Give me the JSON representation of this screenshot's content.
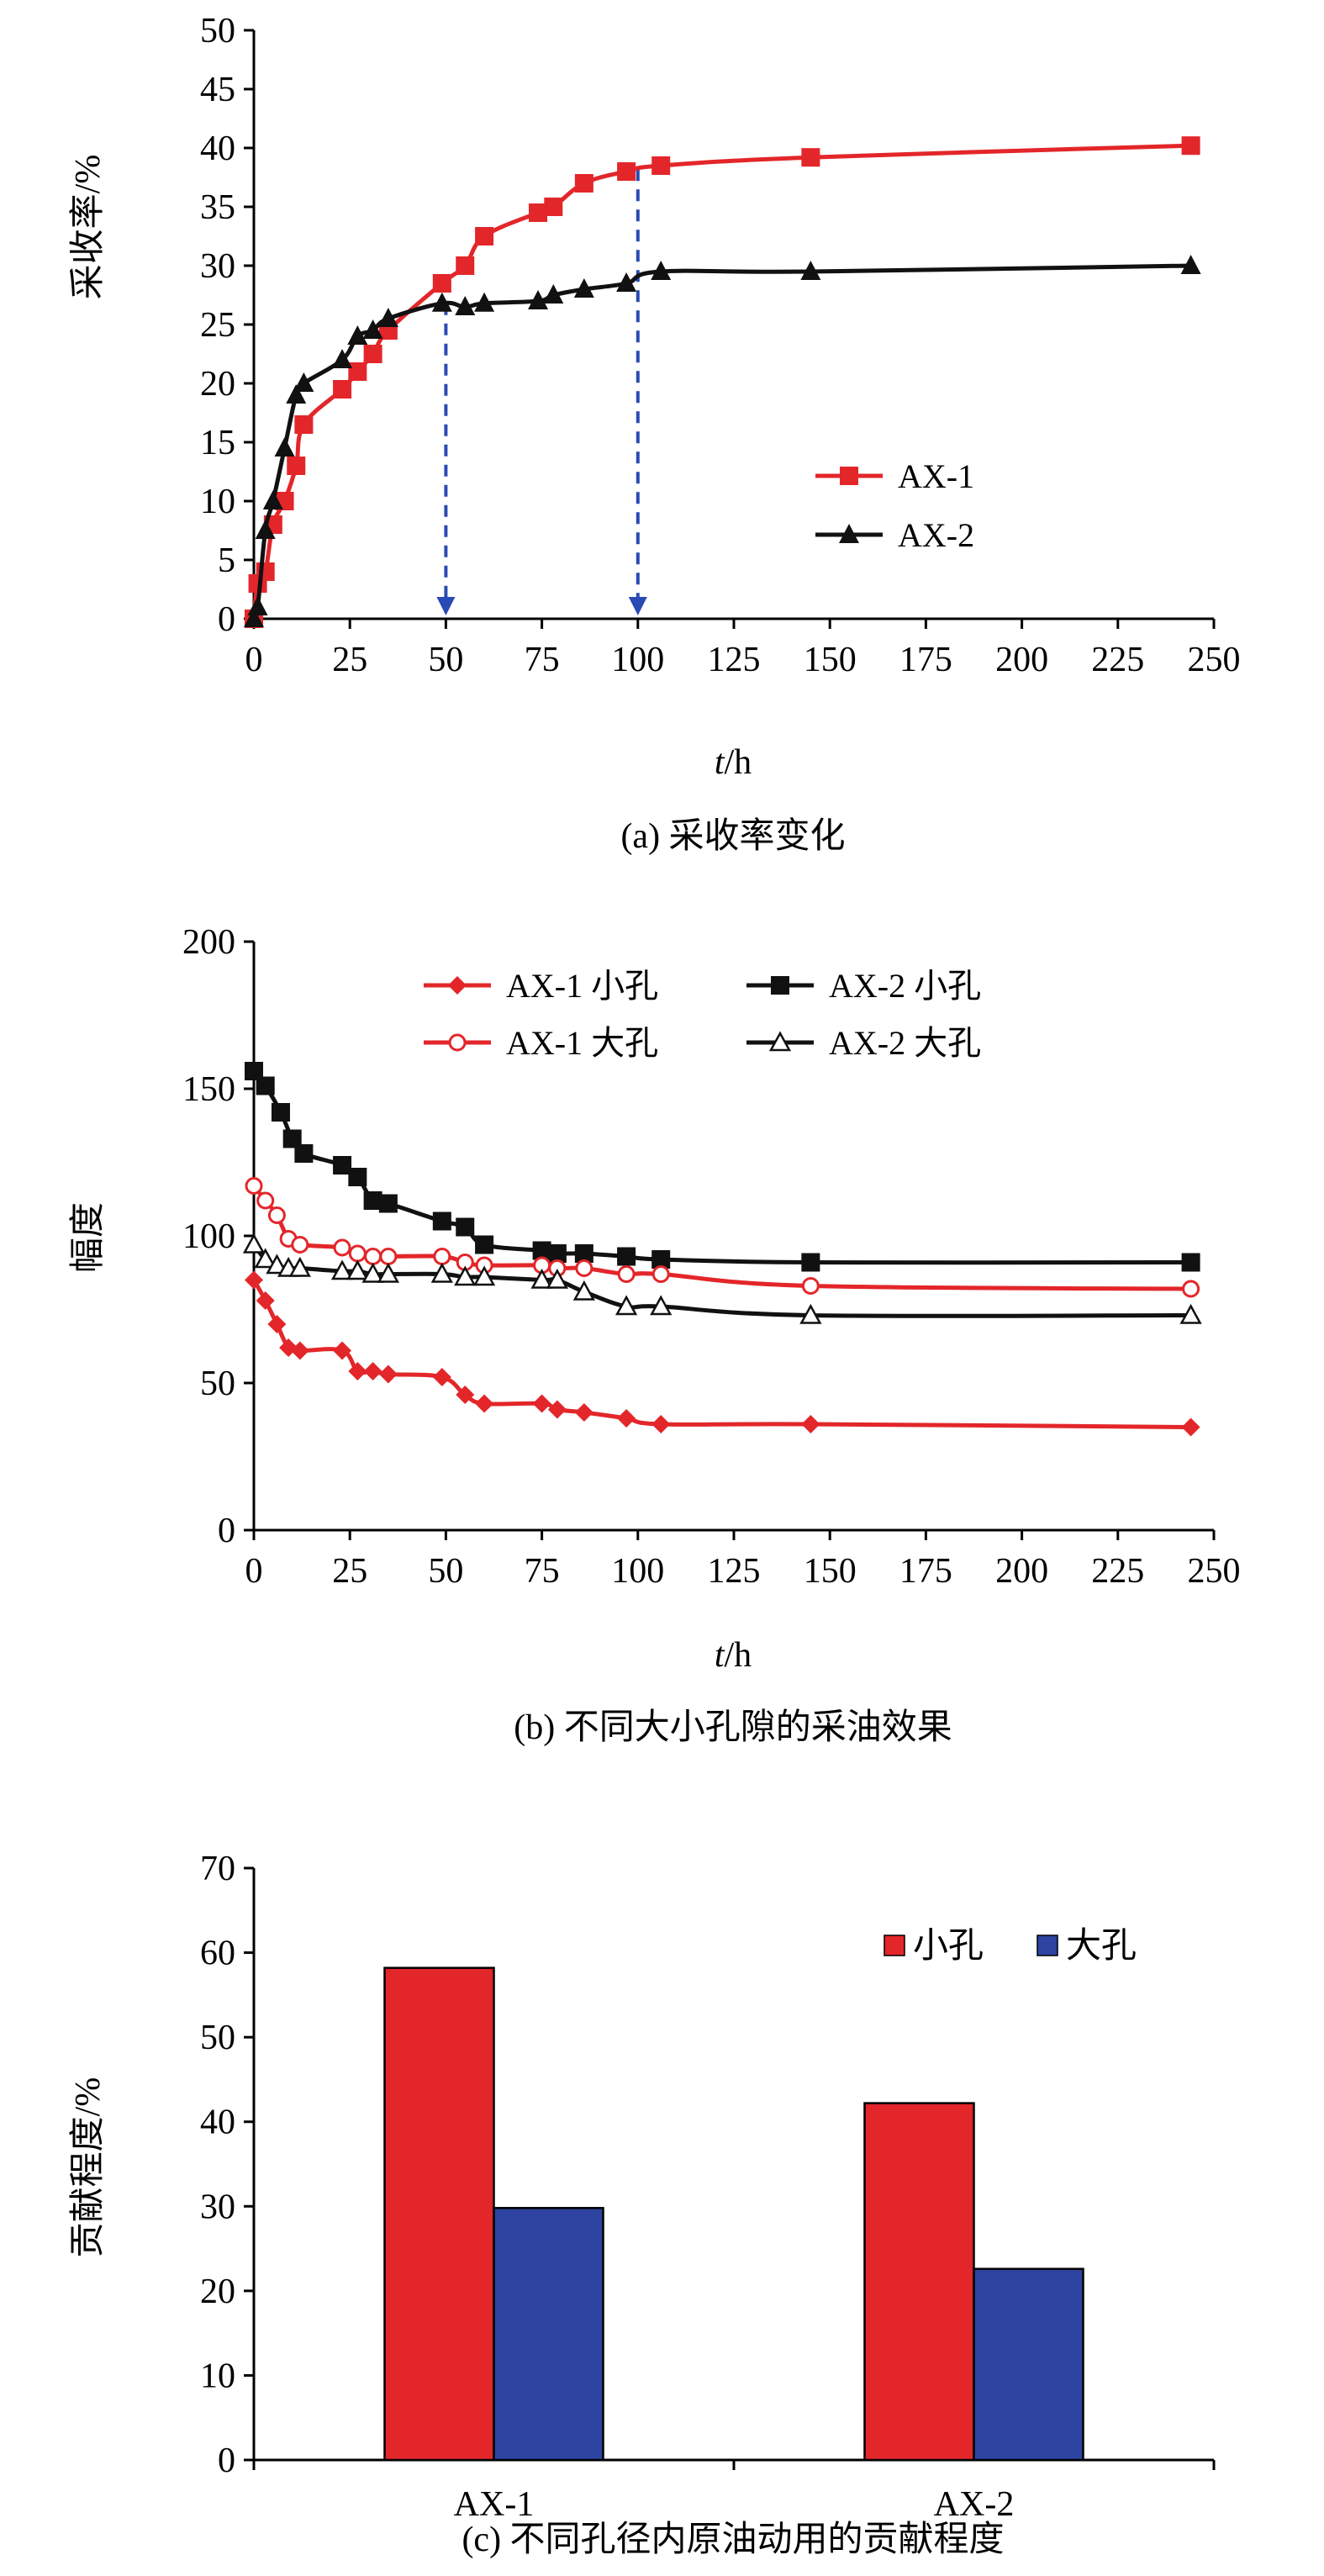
{
  "colors": {
    "red": "#e3262a",
    "black": "#111111",
    "blue": "#2e44a0",
    "arrow": "#2a4bb5"
  },
  "chart_data": [
    {
      "type": "line",
      "ylabel": "采收率/%",
      "xlabel_italic": "t",
      "xlabel_unit": "/h",
      "caption": "(a) 采收率变化",
      "xlim": [
        0,
        250
      ],
      "ylim": [
        0,
        50
      ],
      "xticks": [
        0,
        25,
        50,
        75,
        100,
        125,
        150,
        175,
        200,
        225,
        250
      ],
      "yticks": [
        0,
        5,
        10,
        15,
        20,
        25,
        30,
        35,
        40,
        45,
        50
      ],
      "legend_placement": "right-middle",
      "series": [
        {
          "name": "AX-1",
          "color": "#e3262a",
          "marker": "square",
          "x": [
            0,
            1,
            3,
            5,
            8,
            11,
            13,
            23,
            27,
            31,
            35,
            49,
            55,
            60,
            74,
            78,
            86,
            97,
            106,
            145,
            244
          ],
          "y": [
            0,
            3,
            4,
            8,
            10,
            13,
            16.5,
            19.5,
            21,
            22.5,
            24.5,
            28.5,
            30,
            32.5,
            34.5,
            35,
            37,
            38,
            38.5,
            39.2,
            40.2
          ]
        },
        {
          "name": "AX-2",
          "color": "#111111",
          "marker": "triangle",
          "x": [
            0,
            1,
            3,
            5,
            8,
            11,
            13,
            23,
            27,
            31,
            35,
            49,
            55,
            60,
            74,
            78,
            86,
            97,
            106,
            145,
            244
          ],
          "y": [
            0,
            1,
            7.5,
            10,
            14.5,
            19,
            20,
            22,
            24,
            24.5,
            25.5,
            26.8,
            26.5,
            26.8,
            27,
            27.5,
            28,
            28.5,
            29.5,
            29.5,
            30
          ]
        }
      ],
      "annotations": [
        {
          "x": 50,
          "from_y": 26.8
        },
        {
          "x": 100,
          "from_y": 38.2
        }
      ]
    },
    {
      "type": "line",
      "ylabel": "幅度",
      "xlabel_italic": "t",
      "xlabel_unit": "/h",
      "caption": "(b) 不同大小孔隙的采油效果",
      "xlim": [
        0,
        250
      ],
      "ylim": [
        0,
        200
      ],
      "xticks": [
        0,
        25,
        50,
        75,
        100,
        125,
        150,
        175,
        200,
        225,
        250
      ],
      "yticks": [
        0,
        50,
        100,
        150,
        200
      ],
      "legend_placement": "top",
      "series": [
        {
          "name": "AX-1 小孔",
          "color": "#e3262a",
          "marker": "diamond",
          "x": [
            0,
            3,
            6,
            9,
            12,
            23,
            27,
            31,
            35,
            49,
            55,
            60,
            75,
            79,
            86,
            97,
            106,
            145,
            244
          ],
          "y": [
            85,
            78,
            70,
            62,
            61,
            61,
            54,
            54,
            53,
            52,
            46,
            43,
            43,
            41,
            40,
            38,
            36,
            36,
            35
          ]
        },
        {
          "name": "AX-2 小孔",
          "color": "#111111",
          "marker": "square",
          "x": [
            0,
            3,
            7,
            10,
            13,
            23,
            27,
            31,
            35,
            49,
            55,
            60,
            75,
            79,
            86,
            97,
            106,
            145,
            244
          ],
          "y": [
            156,
            151,
            142,
            133,
            128,
            124,
            120,
            112,
            111,
            105,
            103,
            97,
            95,
            94,
            94,
            93,
            92,
            91,
            91
          ]
        },
        {
          "name": "AX-1 大孔",
          "color": "#e3262a",
          "marker": "circle",
          "x": [
            0,
            3,
            6,
            9,
            12,
            23,
            27,
            31,
            35,
            49,
            55,
            60,
            75,
            79,
            86,
            97,
            106,
            145,
            244
          ],
          "y": [
            117,
            112,
            107,
            99,
            97,
            96,
            94,
            93,
            93,
            93,
            91,
            90,
            90,
            89,
            89,
            87,
            87,
            83,
            82
          ]
        },
        {
          "name": "AX-2 大孔",
          "color": "#111111",
          "marker": "triangle-open",
          "x": [
            0,
            3,
            6,
            9,
            12,
            23,
            27,
            31,
            35,
            49,
            55,
            60,
            75,
            79,
            86,
            97,
            106,
            145,
            244
          ],
          "y": [
            97,
            92,
            90,
            89,
            89,
            88,
            88,
            87,
            87,
            87,
            86,
            86,
            85,
            85,
            81,
            76,
            76,
            73,
            73
          ]
        }
      ]
    },
    {
      "type": "bar",
      "ylabel": "贡献程度/%",
      "caption": "(c) 不同孔径内原油动用的贡献程度",
      "categories": [
        "AX-1",
        "AX-2"
      ],
      "ylim": [
        0,
        70
      ],
      "yticks": [
        0,
        10,
        20,
        30,
        40,
        50,
        60,
        70
      ],
      "legend_placement": "top-right",
      "series": [
        {
          "name": "小孔",
          "color": "#e3262a",
          "values": [
            58.2,
            42.2
          ]
        },
        {
          "name": "大孔",
          "color": "#2e44a0",
          "values": [
            29.8,
            22.6
          ]
        }
      ]
    }
  ]
}
